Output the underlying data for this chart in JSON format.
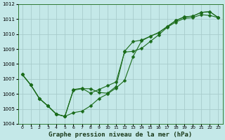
{
  "xlabel": "Graphe pression niveau de la mer (hPa)",
  "background_color": "#c4e8e8",
  "grid_color": "#a8cccc",
  "line_color": "#1a6b1a",
  "x_values": [
    0,
    1,
    2,
    3,
    4,
    5,
    6,
    7,
    8,
    9,
    10,
    11,
    12,
    13,
    14,
    15,
    16,
    17,
    18,
    19,
    20,
    21,
    22,
    23
  ],
  "series1": [
    1007.3,
    1006.6,
    1005.7,
    1005.2,
    1004.65,
    1004.5,
    1004.75,
    1004.85,
    1005.2,
    1005.7,
    1006.0,
    1006.4,
    1006.9,
    1008.5,
    1009.55,
    1009.85,
    1010.1,
    1010.5,
    1010.9,
    1011.15,
    1011.2,
    1011.45,
    1011.5,
    1011.1
  ],
  "series2": [
    1007.3,
    1006.6,
    1005.7,
    1005.2,
    1004.65,
    1004.5,
    1006.25,
    1006.35,
    1006.35,
    1006.1,
    1006.05,
    1006.5,
    1008.85,
    1009.5,
    1009.6,
    1009.85,
    1010.1,
    1010.5,
    1010.9,
    1011.15,
    1011.2,
    1011.45,
    1011.5,
    1011.1
  ],
  "series3": [
    1007.3,
    1006.6,
    1005.7,
    1005.2,
    1004.65,
    1004.5,
    1006.3,
    1006.38,
    1006.05,
    1006.3,
    1006.55,
    1006.8,
    1008.8,
    1008.85,
    1009.05,
    1009.5,
    1009.95,
    1010.45,
    1010.8,
    1011.05,
    1011.1,
    1011.3,
    1011.25,
    1011.1
  ],
  "ylim": [
    1004.0,
    1012.0
  ],
  "xlim": [
    -0.5,
    23.5
  ],
  "yticks": [
    1004,
    1005,
    1006,
    1007,
    1008,
    1009,
    1010,
    1011,
    1012
  ]
}
